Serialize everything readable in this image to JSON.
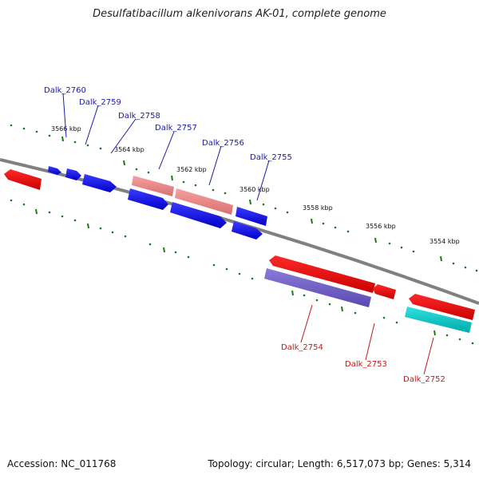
{
  "title": "Desulfatibacillum alkenivorans AK-01, complete genome",
  "footer": {
    "accession": "Accession: NC_011768",
    "summary": "Topology: circular; Length: 6,517,073 bp; Genes: 5,314"
  },
  "colors": {
    "backbone": "#808080",
    "tick": "#1a7a1a",
    "forward_label": "#1a1aa8",
    "reverse_label": "#c01818"
  },
  "tick_labels": [
    "3566 kbp",
    "3564 kbp",
    "3562 kbp",
    "3560 kbp",
    "3558 kbp",
    "3556 kbp",
    "3554 kbp"
  ],
  "genes_top": [
    {
      "label": "Dalk_2760"
    },
    {
      "label": "Dalk_2759"
    },
    {
      "label": "Dalk_2758"
    },
    {
      "label": "Dalk_2757"
    },
    {
      "label": "Dalk_2756"
    },
    {
      "label": "Dalk_2755"
    }
  ],
  "genes_bottom": [
    {
      "label": "Dalk_2754"
    },
    {
      "label": "Dalk_2753"
    },
    {
      "label": "Dalk_2752"
    }
  ]
}
